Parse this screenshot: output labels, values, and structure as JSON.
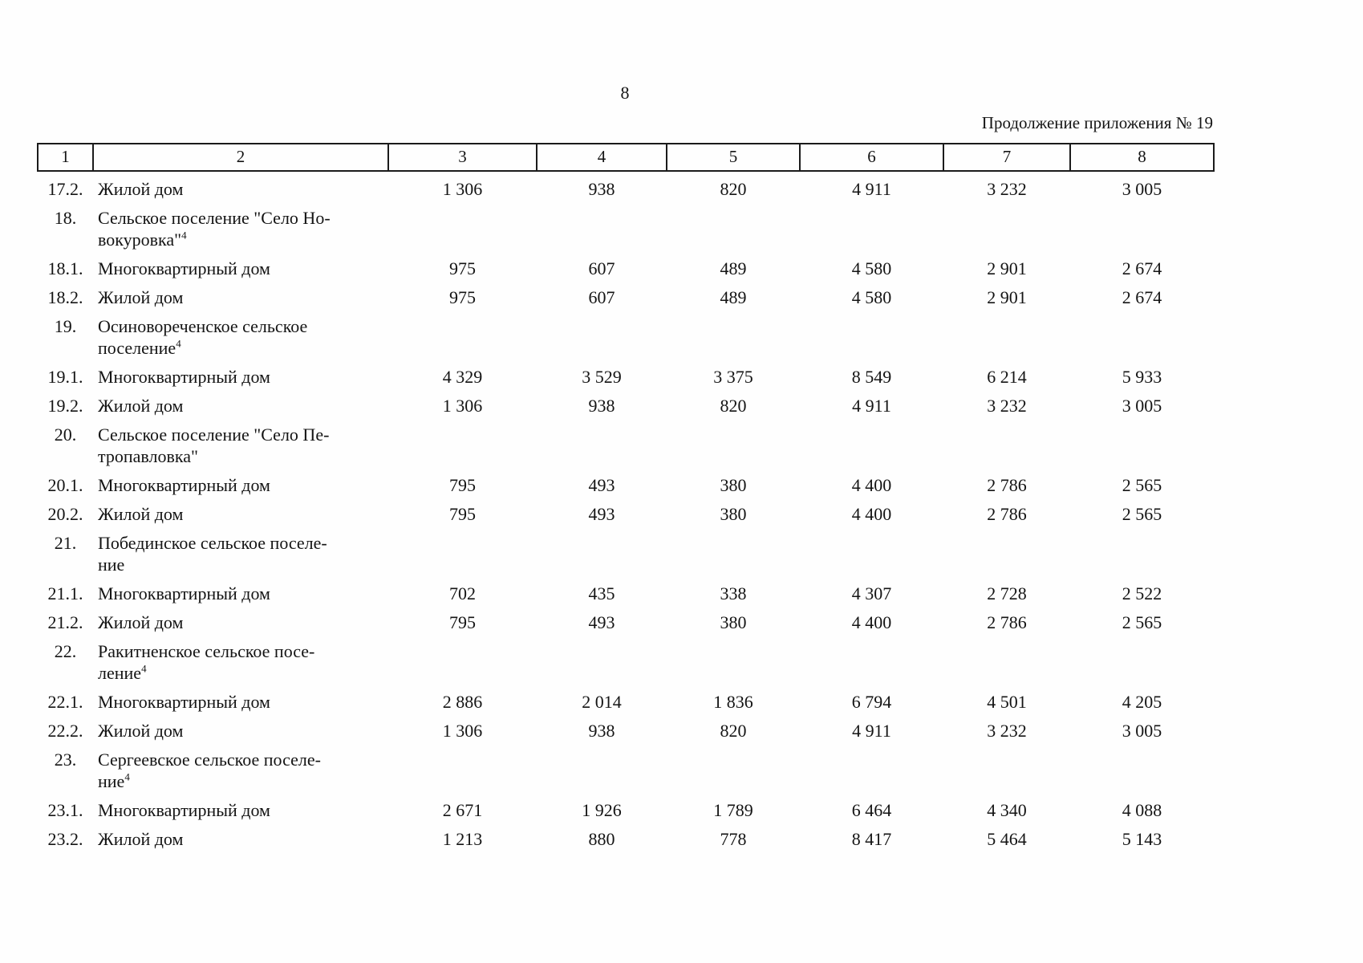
{
  "page": {
    "number": "8",
    "continuation": "Продолжение приложения № 19"
  },
  "table": {
    "column_numbers": [
      "1",
      "2",
      "3",
      "4",
      "5",
      "6",
      "7",
      "8"
    ],
    "rows": [
      {
        "num": "17.2.",
        "name_lines": [
          "Жилой дом"
        ],
        "sup": "",
        "values": [
          "1 306",
          "938",
          "820",
          "4 911",
          "3 232",
          "3 005"
        ]
      },
      {
        "num": "18.",
        "name_lines": [
          "Сельское поселение \"Село Но-",
          "вокуровка\""
        ],
        "sup": "4",
        "values": [
          "",
          "",
          "",
          "",
          "",
          ""
        ]
      },
      {
        "num": "18.1.",
        "name_lines": [
          "Многоквартирный дом"
        ],
        "sup": "",
        "values": [
          "975",
          "607",
          "489",
          "4 580",
          "2 901",
          "2 674"
        ]
      },
      {
        "num": "18.2.",
        "name_lines": [
          "Жилой дом"
        ],
        "sup": "",
        "values": [
          "975",
          "607",
          "489",
          "4 580",
          "2 901",
          "2 674"
        ]
      },
      {
        "num": "19.",
        "name_lines": [
          "Осиновореченское сельское",
          "поселение"
        ],
        "sup": "4",
        "values": [
          "",
          "",
          "",
          "",
          "",
          ""
        ]
      },
      {
        "num": "19.1.",
        "name_lines": [
          "Многоквартирный дом"
        ],
        "sup": "",
        "values": [
          "4 329",
          "3 529",
          "3 375",
          "8 549",
          "6 214",
          "5 933"
        ]
      },
      {
        "num": "19.2.",
        "name_lines": [
          "Жилой дом"
        ],
        "sup": "",
        "values": [
          "1 306",
          "938",
          "820",
          "4 911",
          "3 232",
          "3 005"
        ]
      },
      {
        "num": "20.",
        "name_lines": [
          "Сельское поселение \"Село Пе-",
          "тропавловка\""
        ],
        "sup": "",
        "values": [
          "",
          "",
          "",
          "",
          "",
          ""
        ]
      },
      {
        "num": "20.1.",
        "name_lines": [
          "Многоквартирный дом"
        ],
        "sup": "",
        "values": [
          "795",
          "493",
          "380",
          "4 400",
          "2 786",
          "2 565"
        ]
      },
      {
        "num": "20.2.",
        "name_lines": [
          "Жилой дом"
        ],
        "sup": "",
        "values": [
          "795",
          "493",
          "380",
          "4 400",
          "2 786",
          "2 565"
        ]
      },
      {
        "num": "21.",
        "name_lines": [
          "Побединское сельское поселе-",
          "ние"
        ],
        "sup": "",
        "values": [
          "",
          "",
          "",
          "",
          "",
          ""
        ]
      },
      {
        "num": "21.1.",
        "name_lines": [
          "Многоквартирный дом"
        ],
        "sup": "",
        "values": [
          "702",
          "435",
          "338",
          "4 307",
          "2 728",
          "2 522"
        ]
      },
      {
        "num": "21.2.",
        "name_lines": [
          "Жилой дом"
        ],
        "sup": "",
        "values": [
          "795",
          "493",
          "380",
          "4 400",
          "2 786",
          "2 565"
        ]
      },
      {
        "num": "22.",
        "name_lines": [
          "Ракитненское сельское посе-",
          "ление"
        ],
        "sup": "4",
        "values": [
          "",
          "",
          "",
          "",
          "",
          ""
        ]
      },
      {
        "num": "22.1.",
        "name_lines": [
          "Многоквартирный дом"
        ],
        "sup": "",
        "values": [
          "2 886",
          "2 014",
          "1 836",
          "6 794",
          "4 501",
          "4 205"
        ]
      },
      {
        "num": "22.2.",
        "name_lines": [
          "Жилой дом"
        ],
        "sup": "",
        "values": [
          "1 306",
          "938",
          "820",
          "4 911",
          "3 232",
          "3 005"
        ]
      },
      {
        "num": "23.",
        "name_lines": [
          "Сергеевское сельское поселе-",
          "ние"
        ],
        "sup": "4",
        "values": [
          "",
          "",
          "",
          "",
          "",
          ""
        ]
      },
      {
        "num": "23.1.",
        "name_lines": [
          "Многоквартирный дом"
        ],
        "sup": "",
        "values": [
          "2 671",
          "1 926",
          "1 789",
          "6 464",
          "4 340",
          "4 088"
        ]
      },
      {
        "num": "23.2.",
        "name_lines": [
          "Жилой дом"
        ],
        "sup": "",
        "values": [
          "1 213",
          "880",
          "778",
          "8 417",
          "5 464",
          "5 143"
        ]
      }
    ]
  }
}
